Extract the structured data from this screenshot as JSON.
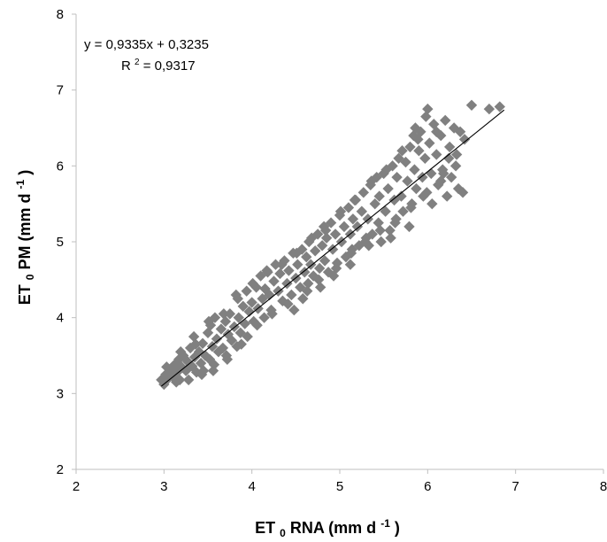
{
  "chart_data": {
    "type": "scatter",
    "title": "",
    "xlabel_main": "ET",
    "xlabel_sub": "0",
    "xlabel_rest": " RNA (mm d",
    "xlabel_sup": "-1",
    "xlabel_end": ")",
    "ylabel_main": "ET",
    "ylabel_sub": "0",
    "ylabel_rest": " PM (mm d",
    "ylabel_sup": "-1",
    "ylabel_end": ")",
    "xlim": [
      2,
      8
    ],
    "ylim": [
      2,
      8
    ],
    "xticks": [
      2,
      3,
      4,
      5,
      6,
      7,
      8
    ],
    "yticks": [
      2,
      3,
      4,
      5,
      6,
      7,
      8
    ],
    "grid": false,
    "marker": "diamond",
    "marker_color": "#808080",
    "trendline_color": "#000000",
    "equation": "y = 0,9335x + 0,3235",
    "r2_prefix": "R",
    "r2_sup": "2",
    "r2_suffix": " = 0,9317",
    "trendline": {
      "slope": 0.9335,
      "intercept": 0.3235,
      "x_range": [
        2.97,
        6.87
      ]
    },
    "points": [
      [
        2.97,
        3.18
      ],
      [
        3.0,
        3.12
      ],
      [
        3.02,
        3.25
      ],
      [
        3.05,
        3.2
      ],
      [
        3.07,
        3.3
      ],
      [
        3.1,
        3.22
      ],
      [
        3.12,
        3.38
      ],
      [
        3.15,
        3.28
      ],
      [
        3.17,
        3.45
      ],
      [
        3.18,
        3.18
      ],
      [
        3.2,
        3.35
      ],
      [
        3.22,
        3.5
      ],
      [
        3.25,
        3.3
      ],
      [
        3.27,
        3.42
      ],
      [
        3.3,
        3.6
      ],
      [
        3.32,
        3.36
      ],
      [
        3.34,
        3.75
      ],
      [
        3.35,
        3.48
      ],
      [
        3.37,
        3.28
      ],
      [
        3.4,
        3.55
      ],
      [
        3.42,
        3.4
      ],
      [
        3.44,
        3.66
      ],
      [
        3.45,
        3.3
      ],
      [
        3.47,
        3.5
      ],
      [
        3.5,
        3.8
      ],
      [
        3.51,
        3.95
      ],
      [
        3.52,
        3.45
      ],
      [
        3.55,
        3.62
      ],
      [
        3.57,
        3.38
      ],
      [
        3.58,
        4.0
      ],
      [
        3.6,
        3.72
      ],
      [
        3.62,
        3.55
      ],
      [
        3.65,
        3.85
      ],
      [
        3.67,
        3.6
      ],
      [
        3.7,
        3.95
      ],
      [
        3.71,
        3.5
      ],
      [
        3.73,
        3.78
      ],
      [
        3.75,
        4.05
      ],
      [
        3.77,
        3.7
      ],
      [
        3.8,
        3.88
      ],
      [
        3.82,
        4.3
      ],
      [
        3.83,
        3.62
      ],
      [
        3.85,
        4.0
      ],
      [
        3.87,
        3.8
      ],
      [
        3.9,
        4.15
      ],
      [
        3.92,
        3.92
      ],
      [
        3.94,
        4.35
      ],
      [
        3.95,
        3.75
      ],
      [
        3.97,
        4.08
      ],
      [
        4.0,
        4.2
      ],
      [
        4.02,
        3.95
      ],
      [
        4.05,
        4.4
      ],
      [
        4.07,
        4.12
      ],
      [
        4.1,
        4.55
      ],
      [
        4.12,
        4.25
      ],
      [
        4.14,
        4.0
      ],
      [
        4.15,
        4.38
      ],
      [
        4.17,
        4.62
      ],
      [
        4.2,
        4.3
      ],
      [
        4.22,
        4.1
      ],
      [
        4.25,
        4.48
      ],
      [
        4.27,
        4.7
      ],
      [
        4.3,
        4.35
      ],
      [
        4.32,
        4.58
      ],
      [
        4.35,
        4.22
      ],
      [
        4.37,
        4.75
      ],
      [
        4.4,
        4.45
      ],
      [
        4.42,
        4.62
      ],
      [
        4.45,
        4.3
      ],
      [
        4.47,
        4.85
      ],
      [
        4.5,
        4.52
      ],
      [
        4.52,
        4.7
      ],
      [
        4.55,
        4.4
      ],
      [
        4.57,
        4.9
      ],
      [
        4.6,
        4.6
      ],
      [
        4.62,
        4.8
      ],
      [
        4.64,
        4.45
      ],
      [
        4.65,
        5.0
      ],
      [
        4.67,
        4.7
      ],
      [
        4.7,
        4.55
      ],
      [
        4.72,
        4.88
      ],
      [
        4.75,
        5.1
      ],
      [
        4.77,
        4.65
      ],
      [
        4.8,
        4.95
      ],
      [
        4.82,
        5.2
      ],
      [
        4.83,
        4.75
      ],
      [
        4.85,
        5.05
      ],
      [
        4.87,
        4.6
      ],
      [
        4.9,
        5.25
      ],
      [
        4.92,
        4.9
      ],
      [
        4.95,
        5.1
      ],
      [
        4.97,
        4.72
      ],
      [
        5.0,
        5.35
      ],
      [
        5.02,
        5.0
      ],
      [
        5.05,
        5.2
      ],
      [
        5.07,
        4.8
      ],
      [
        5.1,
        5.45
      ],
      [
        5.12,
        5.1
      ],
      [
        5.14,
        4.9
      ],
      [
        5.15,
        5.3
      ],
      [
        5.17,
        5.55
      ],
      [
        5.2,
        5.2
      ],
      [
        5.22,
        4.95
      ],
      [
        5.25,
        5.4
      ],
      [
        5.27,
        5.65
      ],
      [
        5.3,
        5.05
      ],
      [
        5.32,
        5.3
      ],
      [
        5.35,
        5.75
      ],
      [
        5.37,
        5.1
      ],
      [
        5.4,
        5.5
      ],
      [
        5.42,
        5.85
      ],
      [
        5.44,
        5.25
      ],
      [
        5.45,
        5.6
      ],
      [
        5.47,
        5.0
      ],
      [
        5.5,
        5.9
      ],
      [
        5.52,
        5.4
      ],
      [
        5.55,
        5.7
      ],
      [
        5.57,
        5.15
      ],
      [
        5.6,
        6.0
      ],
      [
        5.62,
        5.55
      ],
      [
        5.64,
        5.3
      ],
      [
        5.65,
        5.85
      ],
      [
        5.67,
        6.1
      ],
      [
        5.7,
        5.6
      ],
      [
        5.72,
        5.4
      ],
      [
        5.75,
        6.05
      ],
      [
        5.77,
        5.8
      ],
      [
        5.8,
        6.25
      ],
      [
        5.82,
        5.5
      ],
      [
        5.84,
        6.4
      ],
      [
        5.85,
        5.95
      ],
      [
        5.87,
        5.7
      ],
      [
        5.9,
        6.2
      ],
      [
        5.92,
        6.45
      ],
      [
        5.94,
        5.85
      ],
      [
        5.95,
        5.6
      ],
      [
        5.97,
        6.1
      ],
      [
        6.0,
        6.75
      ],
      [
        6.02,
        6.3
      ],
      [
        6.04,
        5.9
      ],
      [
        6.05,
        5.5
      ],
      [
        6.07,
        6.55
      ],
      [
        6.1,
        6.15
      ],
      [
        6.12,
        5.75
      ],
      [
        6.15,
        6.4
      ],
      [
        6.17,
        5.95
      ],
      [
        6.2,
        6.6
      ],
      [
        6.22,
        5.6
      ],
      [
        6.25,
        6.25
      ],
      [
        6.27,
        5.85
      ],
      [
        6.3,
        6.5
      ],
      [
        6.32,
        6.0
      ],
      [
        6.35,
        5.7
      ],
      [
        6.37,
        6.45
      ],
      [
        6.4,
        5.65
      ],
      [
        6.42,
        6.35
      ],
      [
        6.5,
        6.8
      ],
      [
        6.7,
        6.75
      ],
      [
        6.82,
        6.78
      ],
      [
        6.1,
        6.45
      ],
      [
        5.98,
        6.65
      ],
      [
        5.86,
        6.5
      ],
      [
        6.24,
        6.1
      ],
      [
        6.15,
        5.8
      ],
      [
        5.79,
        5.2
      ],
      [
        5.58,
        5.05
      ],
      [
        5.33,
        4.95
      ],
      [
        5.12,
        4.7
      ],
      [
        4.93,
        4.55
      ],
      [
        4.76,
        4.5
      ],
      [
        4.58,
        4.25
      ],
      [
        4.41,
        4.18
      ],
      [
        4.23,
        4.05
      ],
      [
        4.06,
        3.9
      ],
      [
        3.88,
        3.65
      ],
      [
        3.72,
        3.45
      ],
      [
        3.56,
        3.3
      ],
      [
        3.43,
        3.25
      ],
      [
        3.28,
        3.18
      ],
      [
        3.14,
        3.15
      ],
      [
        3.03,
        3.35
      ],
      [
        3.19,
        3.55
      ],
      [
        3.36,
        3.65
      ],
      [
        3.53,
        3.9
      ],
      [
        3.68,
        4.05
      ],
      [
        3.84,
        4.25
      ],
      [
        4.01,
        4.45
      ],
      [
        4.18,
        4.6
      ],
      [
        4.34,
        4.7
      ],
      [
        4.51,
        4.85
      ],
      [
        4.68,
        5.05
      ],
      [
        4.84,
        5.15
      ],
      [
        5.01,
        5.4
      ],
      [
        5.18,
        5.55
      ],
      [
        5.36,
        5.8
      ],
      [
        5.53,
        5.95
      ],
      [
        5.71,
        6.2
      ],
      [
        5.89,
        6.35
      ],
      [
        4.48,
        4.1
      ],
      [
        4.63,
        4.35
      ],
      [
        4.78,
        4.4
      ],
      [
        4.96,
        4.65
      ],
      [
        5.13,
        4.85
      ],
      [
        5.29,
        5.0
      ],
      [
        5.46,
        5.15
      ],
      [
        5.63,
        5.25
      ],
      [
        5.81,
        5.45
      ],
      [
        5.99,
        5.65
      ],
      [
        6.18,
        5.9
      ],
      [
        6.33,
        6.15
      ]
    ]
  }
}
